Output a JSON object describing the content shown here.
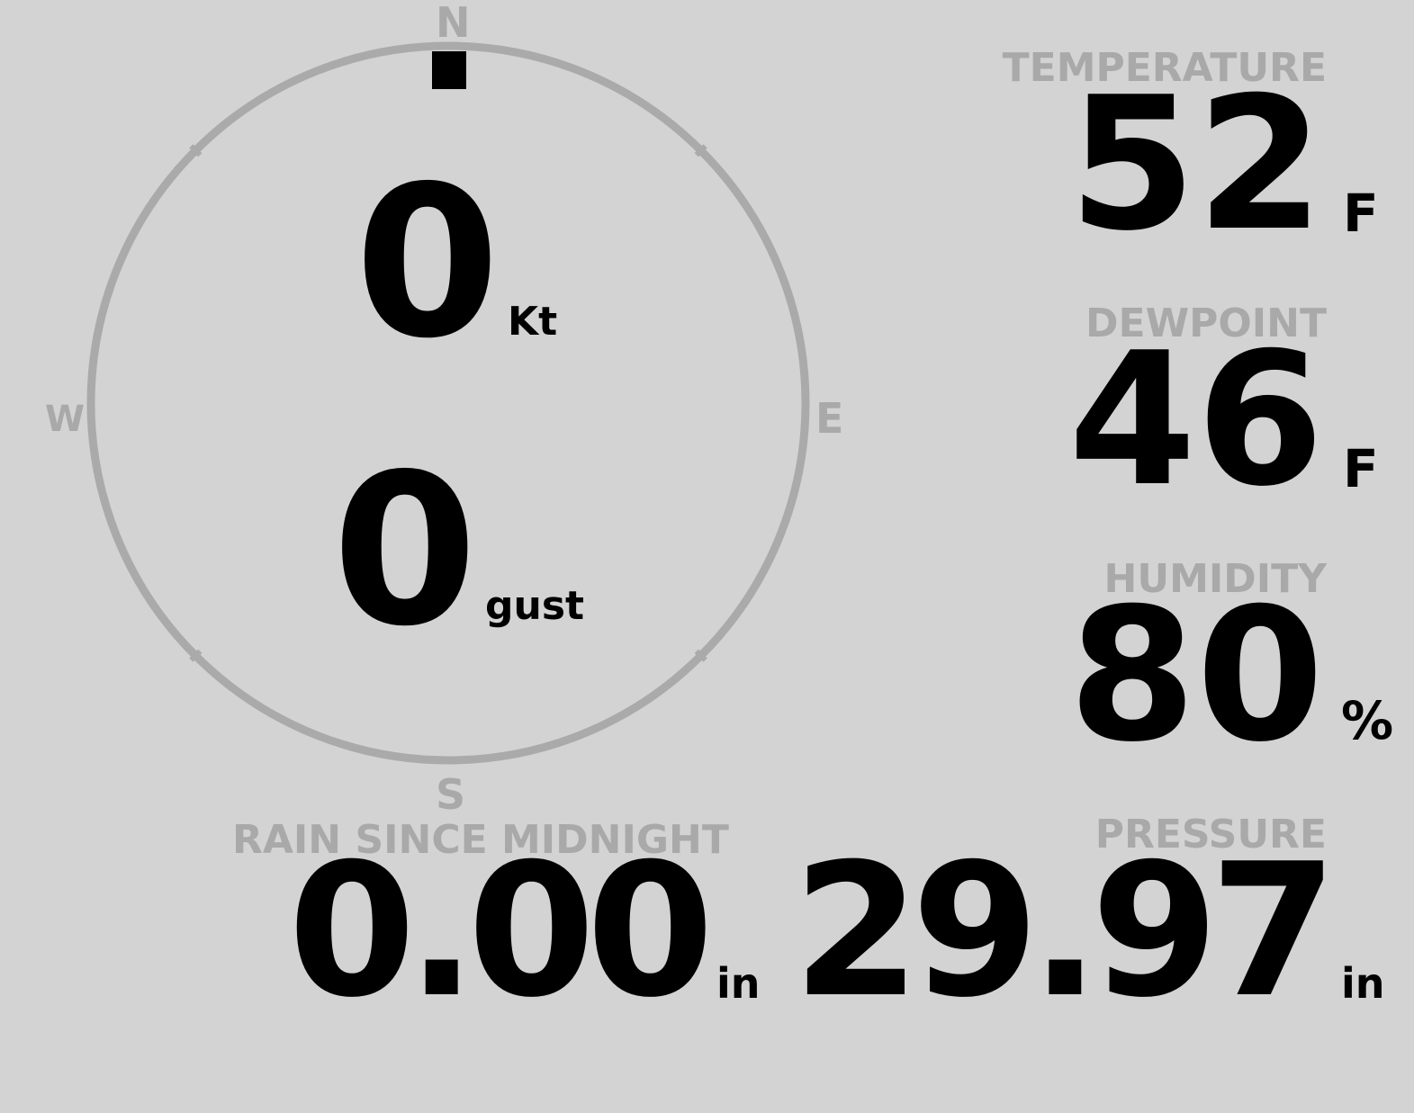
{
  "compass": {
    "north": "N",
    "south": "S",
    "east": "E",
    "west": "W",
    "direction_deg": 0,
    "ring_color": "#aaaaaa",
    "speed": "0",
    "speed_unit": "Kt",
    "gust": "0",
    "gust_unit": "gust"
  },
  "temperature": {
    "label": "TEMPERATURE",
    "value": "52",
    "unit": "F"
  },
  "dewpoint": {
    "label": "DEWPOINT",
    "value": "46",
    "unit": "F"
  },
  "humidity": {
    "label": "HUMIDITY",
    "value": "80",
    "unit": "%"
  },
  "pressure": {
    "label": "PRESSURE",
    "value": "29.97",
    "unit": "in"
  },
  "rain": {
    "label": "RAIN SINCE MIDNIGHT",
    "value": "0.00",
    "unit": "in"
  },
  "colors": {
    "background": "#d3d3d3",
    "label": "#a9a9a9",
    "value": "#000000"
  }
}
